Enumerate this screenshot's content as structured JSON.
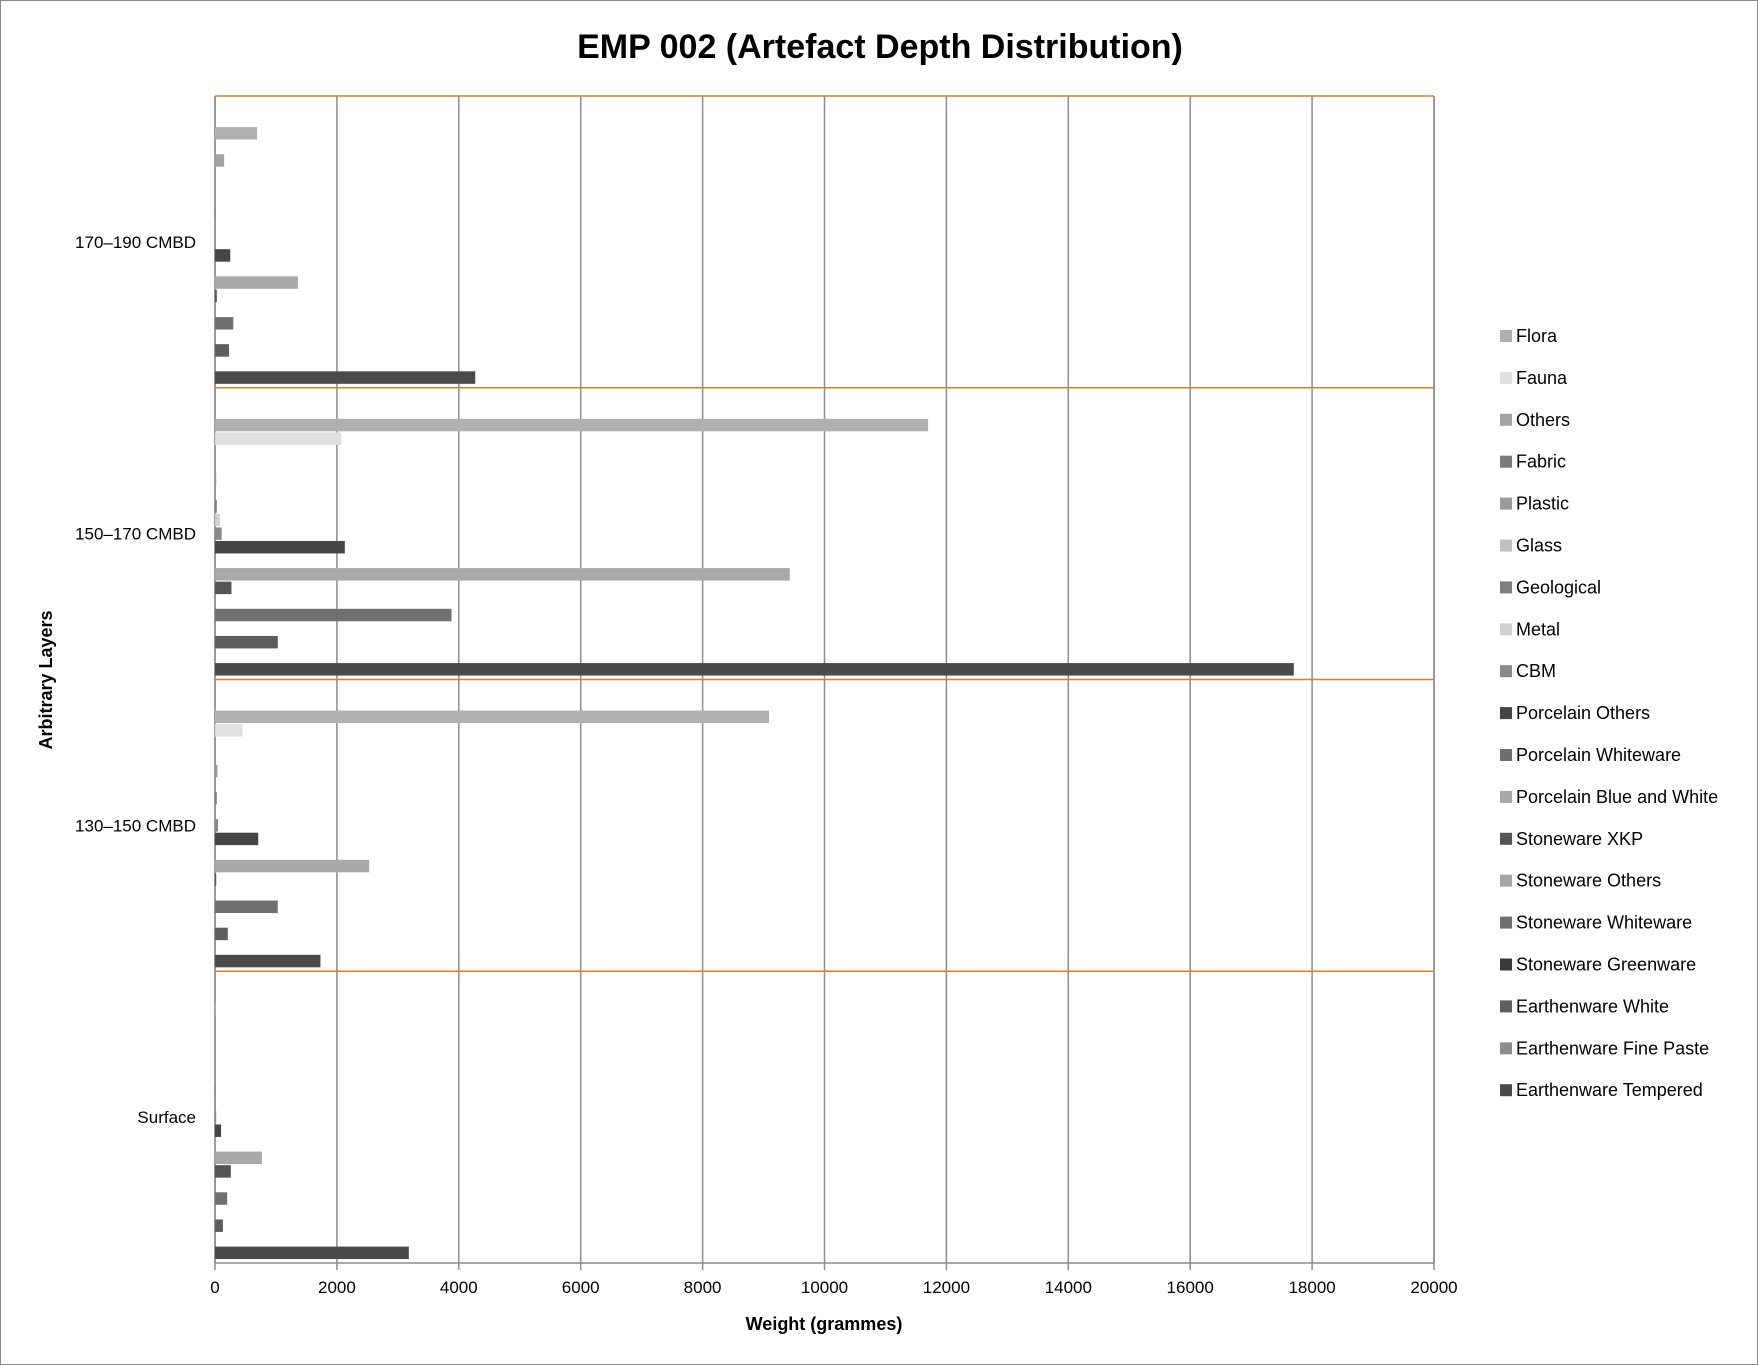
{
  "chart_data": {
    "type": "bar",
    "orientation": "horizontal",
    "title": "EMP 002 (Artefact Depth Distribution)",
    "xlabel": "Weight (grammes)",
    "ylabel": "Arbitrary Layers",
    "xlim": [
      0,
      20000
    ],
    "xticks": [
      "0",
      "2000",
      "4000",
      "6000",
      "8000",
      "10000",
      "12000",
      "14000",
      "16000",
      "18000",
      "20000"
    ],
    "categories": [
      "Surface",
      "130–150 CMBD",
      "150–170 CMBD",
      "170–190 CMBD"
    ],
    "legend_position": "right",
    "grid": true,
    "series": [
      {
        "name": "Earthenware Tempered",
        "color": "#4a4a4a",
        "values": [
          3180,
          1730,
          17700,
          4270
        ]
      },
      {
        "name": "Earthenware Fine Paste",
        "color": "#8c8c8c",
        "values": [
          0,
          0,
          0,
          0
        ]
      },
      {
        "name": "Earthenware White",
        "color": "#5e5e5e",
        "values": [
          130,
          210,
          1030,
          230
        ]
      },
      {
        "name": "Stoneware Greenware",
        "color": "#3a3a3a",
        "values": [
          0,
          0,
          0,
          0
        ]
      },
      {
        "name": "Stoneware Whiteware",
        "color": "#707070",
        "values": [
          200,
          1030,
          3880,
          300
        ]
      },
      {
        "name": "Stoneware Others",
        "color": "#a6a6a6",
        "values": [
          0,
          0,
          0,
          0
        ]
      },
      {
        "name": "Stoneware XKP",
        "color": "#555555",
        "values": [
          260,
          20,
          270,
          30
        ]
      },
      {
        "name": "Porcelain Blue and White",
        "color": "#a9a9a9",
        "values": [
          770,
          2530,
          9430,
          1360
        ]
      },
      {
        "name": "Porcelain Whiteware",
        "color": "#6e6e6e",
        "values": [
          0,
          0,
          0,
          0
        ]
      },
      {
        "name": "Porcelain Others",
        "color": "#454545",
        "values": [
          100,
          710,
          2130,
          250
        ]
      },
      {
        "name": "CBM",
        "color": "#8a8a8a",
        "values": [
          20,
          50,
          110,
          0
        ]
      },
      {
        "name": "Metal",
        "color": "#d0d0d0",
        "values": [
          0,
          0,
          80,
          0
        ]
      },
      {
        "name": "Geological",
        "color": "#7f7f7f",
        "values": [
          10,
          30,
          30,
          10
        ]
      },
      {
        "name": "Glass",
        "color": "#c0c0c0",
        "values": [
          0,
          0,
          0,
          0
        ]
      },
      {
        "name": "Plastic",
        "color": "#9a9a9a",
        "values": [
          0,
          40,
          20,
          0
        ]
      },
      {
        "name": "Fabric",
        "color": "#7a7a7a",
        "values": [
          0,
          0,
          0,
          0
        ]
      },
      {
        "name": "Others",
        "color": "#a3a3a3",
        "values": [
          0,
          0,
          0,
          150
        ]
      },
      {
        "name": "Fauna",
        "color": "#e0e0e0",
        "values": [
          0,
          450,
          2070,
          0
        ]
      },
      {
        "name": "Flora",
        "color": "#b0b0b0",
        "values": [
          10,
          9090,
          11700,
          690
        ]
      },
      {
        "name": "Fauna",
        "color": "#e6e6e6",
        "values": [
          0,
          0,
          0,
          0
        ]
      },
      {
        "name": "Flora",
        "color": "#b5b5b5",
        "values": [
          0,
          0,
          0,
          0
        ]
      }
    ]
  }
}
